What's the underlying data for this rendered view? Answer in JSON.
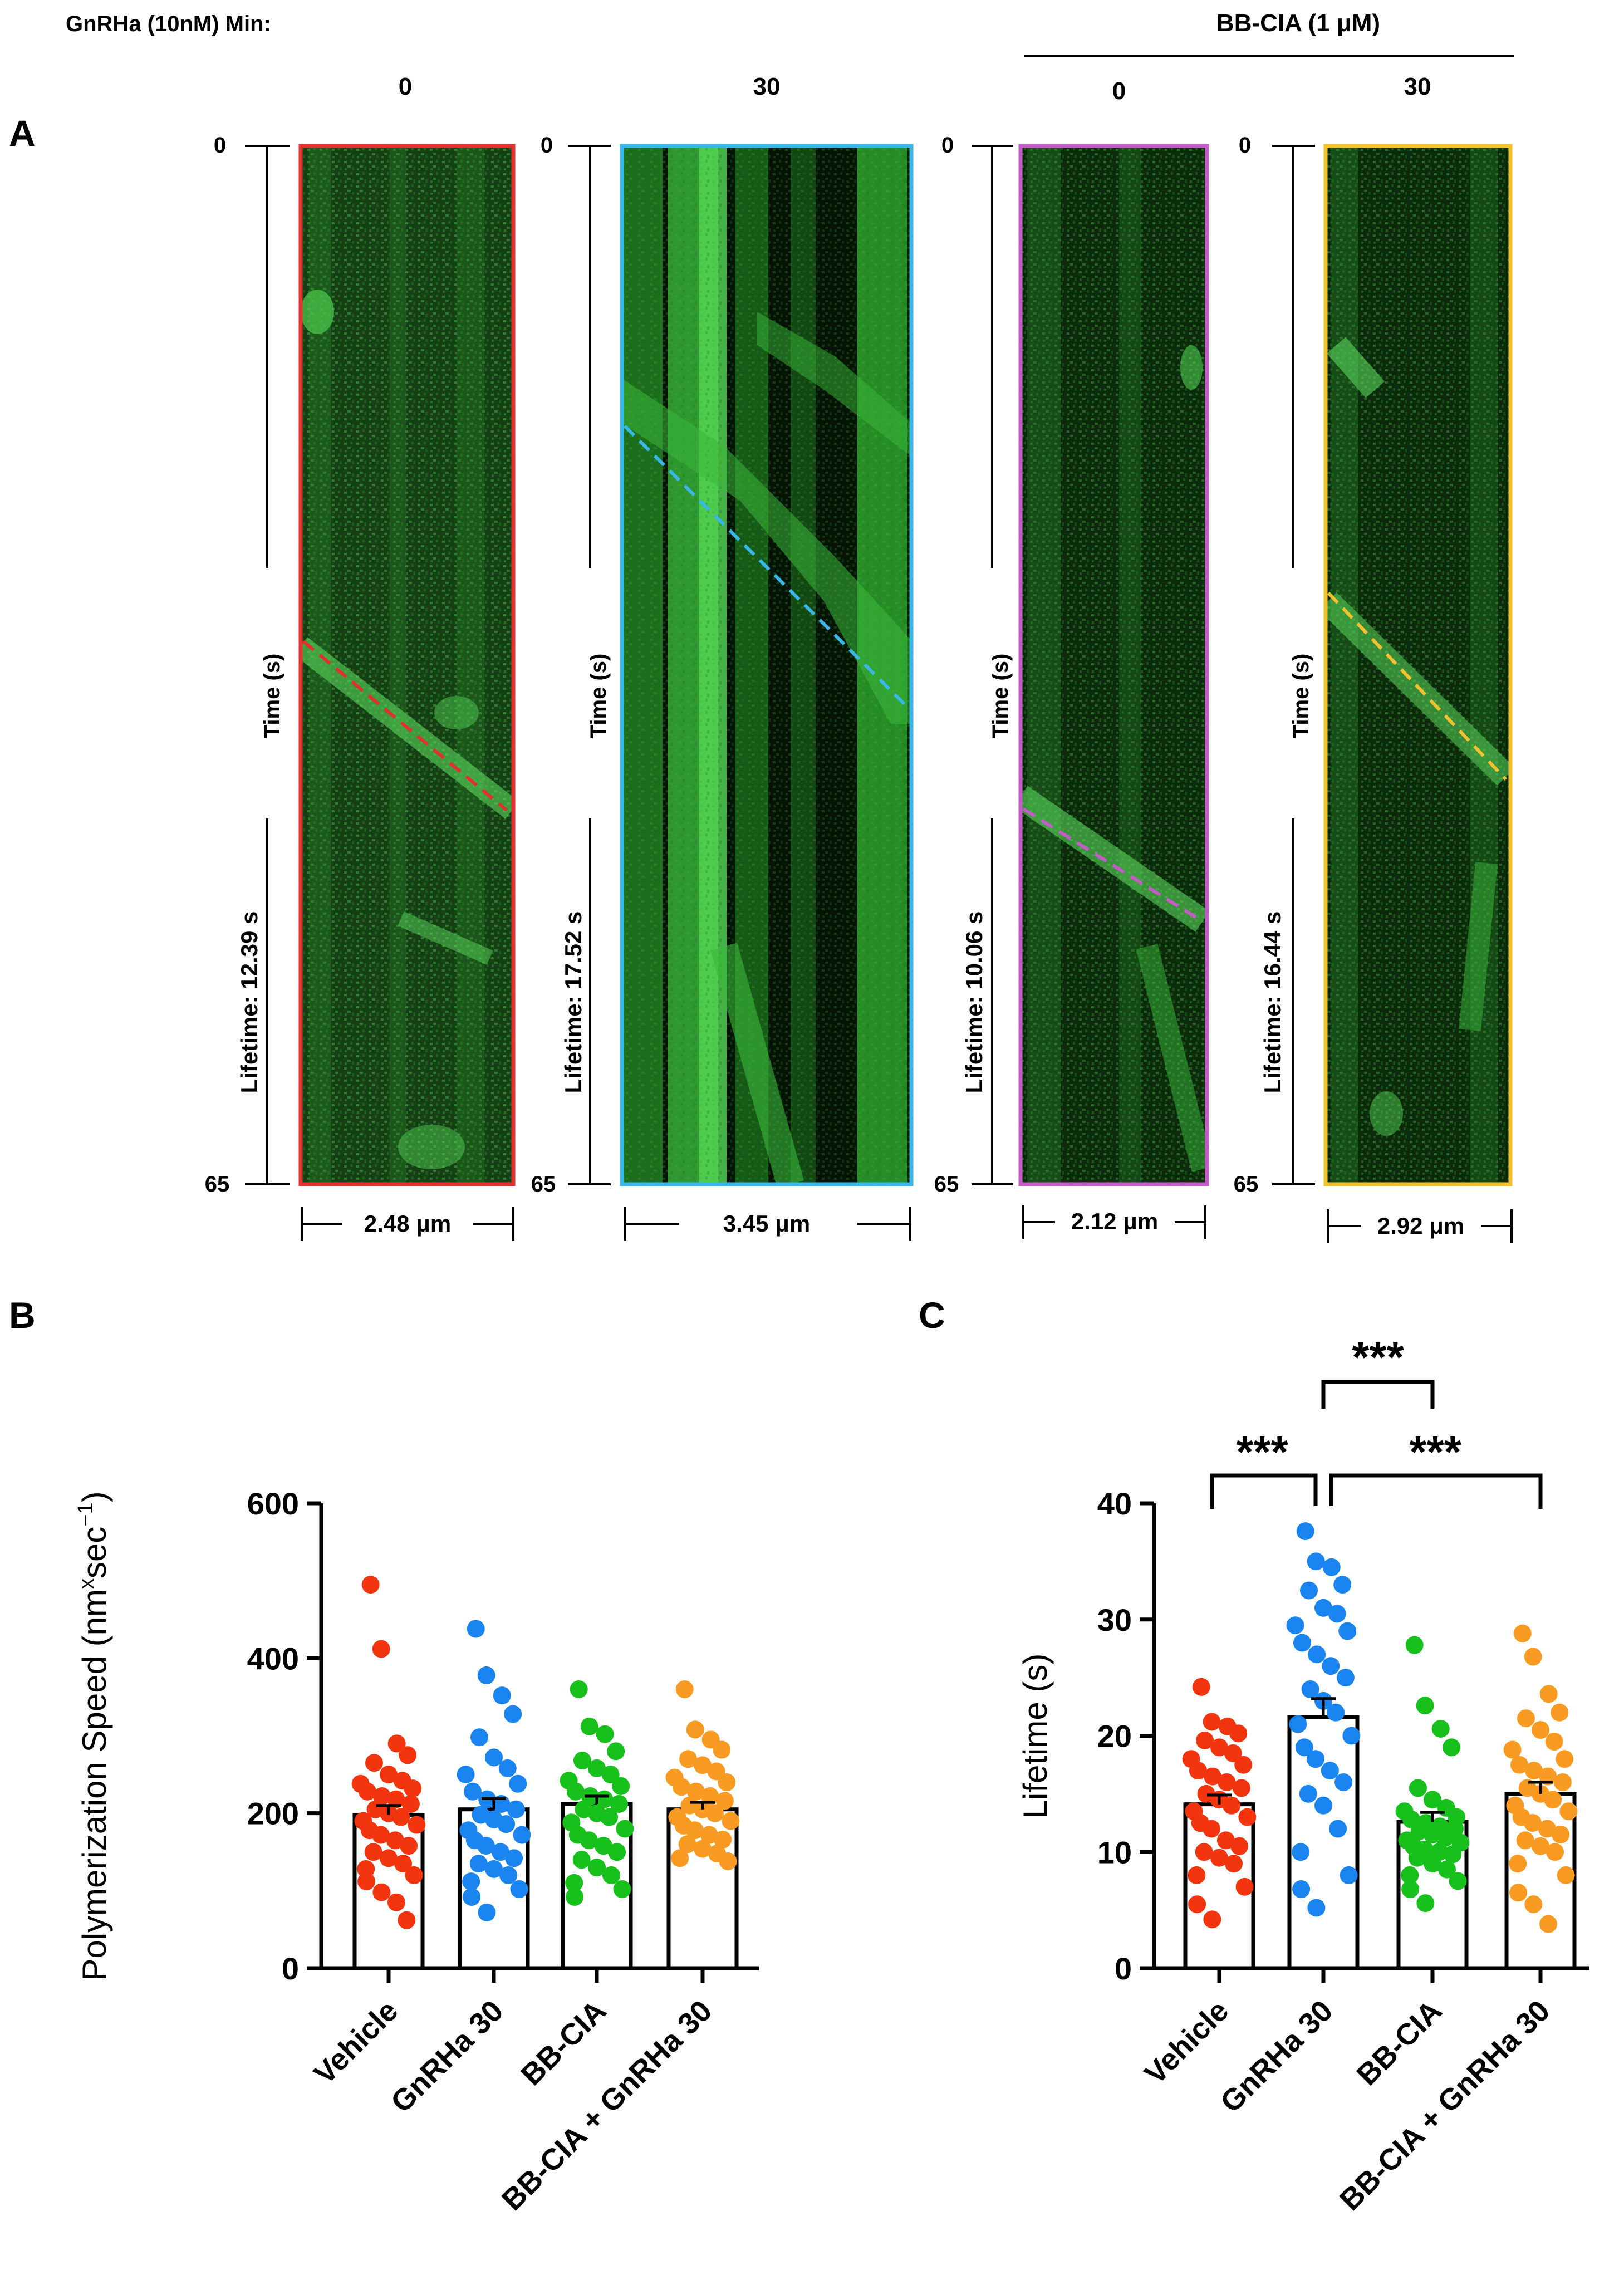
{
  "header": {
    "gnrha_label": "GnRHa (10nM) Min:",
    "bbcia_label": "BB-CIA (1 μM)"
  },
  "panels": {
    "a": "A",
    "b": "B",
    "c": "C"
  },
  "kymographs": [
    {
      "minute": "0",
      "time_start": "0",
      "time_end": "65",
      "time_label": "Time (s)",
      "lifetime": "Lifetime: 12.39 s",
      "width_label": "2.48 μm",
      "border": "#e03030",
      "line": "#e03030"
    },
    {
      "minute": "30",
      "time_start": "0",
      "time_end": "65",
      "time_label": "Time (s)",
      "lifetime": "Lifetime: 17.52 s",
      "width_label": "3.45 μm",
      "border": "#38b7e8",
      "line": "#38b7e8"
    },
    {
      "minute": "0",
      "time_start": "0",
      "time_end": "65",
      "time_label": "Time (s)",
      "lifetime": "Lifetime: 10.06 s",
      "width_label": "2.12 μm",
      "border": "#c45cc8",
      "line": "#c45cc8"
    },
    {
      "minute": "30",
      "time_start": "0",
      "time_end": "65",
      "time_label": "Time (s)",
      "lifetime": "Lifetime: 16.44 s",
      "width_label": "2.92 μm",
      "border": "#f2c12e",
      "line": "#f2c12e"
    }
  ],
  "chart_data": [
    {
      "id": "B",
      "type": "bar",
      "categories": [
        "Vehicle",
        "GnRHa 30",
        "BB-CIA",
        "BB-CIA + GnRHa 30"
      ],
      "values": [
        198,
        205,
        212,
        205
      ],
      "sem": [
        12,
        14,
        10,
        9
      ],
      "colors": [
        "#f2350f",
        "#1a84f0",
        "#18c01c",
        "#f99a22"
      ],
      "points": [
        [
          495,
          412,
          290,
          275,
          265,
          250,
          242,
          238,
          232,
          228,
          222,
          218,
          212,
          205,
          200,
          195,
          190,
          185,
          178,
          172,
          165,
          158,
          150,
          142,
          135,
          128,
          120,
          112,
          98,
          85,
          62
        ],
        [
          438,
          378,
          352,
          328,
          298,
          272,
          258,
          250,
          238,
          228,
          218,
          212,
          205,
          198,
          192,
          186,
          178,
          172,
          165,
          158,
          150,
          142,
          135,
          128,
          120,
          112,
          102,
          92,
          72
        ],
        [
          360,
          312,
          302,
          280,
          268,
          258,
          250,
          242,
          235,
          228,
          222,
          218,
          212,
          205,
          200,
          195,
          188,
          180,
          172,
          165,
          158,
          150,
          140,
          130,
          120,
          110,
          102,
          92
        ],
        [
          360,
          308,
          295,
          282,
          270,
          262,
          254,
          246,
          240,
          234,
          228,
          222,
          216,
          210,
          205,
          200,
          195,
          190,
          184,
          178,
          172,
          166,
          160,
          154,
          148,
          142,
          138
        ]
      ],
      "ylabel": "Polymerization Speed (nm×sec⁻¹)",
      "ylabel_main": "Polymerization Speed (nm",
      "ylabel_x": "x",
      "ylabel_sec": "sec",
      "ylabel_sup": "−1",
      "ylabel_close": ")",
      "ylim": [
        0,
        600
      ],
      "yticks": [
        "0",
        "200",
        "400",
        "600"
      ]
    },
    {
      "id": "C",
      "type": "bar",
      "categories": [
        "Vehicle",
        "GnRHa 30",
        "BB-CIA",
        "BB-CIA + GnRHa 30"
      ],
      "values": [
        14.1,
        21.6,
        12.6,
        15.0
      ],
      "sem": [
        0.8,
        1.6,
        0.8,
        1.0
      ],
      "colors": [
        "#f2350f",
        "#1a84f0",
        "#18c01c",
        "#f99a22"
      ],
      "points": [
        [
          24.2,
          21.2,
          20.8,
          20.2,
          19.6,
          19.0,
          18.5,
          18.0,
          17.5,
          17.0,
          16.5,
          16.0,
          15.5,
          15.0,
          14.5,
          14.0,
          13.5,
          13.0,
          12.5,
          12.0,
          11.0,
          10.5,
          10.0,
          9.5,
          9.0,
          8.0,
          7.0,
          5.5,
          4.2
        ],
        [
          37.6,
          35.0,
          34.5,
          33.0,
          32.5,
          31.0,
          30.5,
          29.5,
          29.0,
          28.0,
          27.0,
          26.0,
          25.0,
          24.0,
          23.0,
          22.0,
          21.0,
          20.0,
          19.0,
          18.0,
          17.0,
          16.0,
          15.0,
          14.0,
          12.0,
          10.0,
          8.0,
          6.8,
          5.2
        ],
        [
          27.8,
          22.6,
          20.6,
          19.0,
          15.5,
          14.5,
          13.8,
          13.5,
          13.0,
          12.8,
          12.5,
          12.2,
          12.0,
          11.8,
          11.5,
          11.2,
          11.0,
          10.8,
          10.5,
          10.2,
          10.0,
          9.8,
          9.5,
          9.0,
          8.5,
          8.0,
          7.5,
          6.8,
          5.6
        ],
        [
          28.8,
          26.8,
          23.6,
          22.0,
          21.5,
          20.5,
          19.5,
          18.8,
          18.0,
          17.5,
          17.0,
          16.5,
          16.0,
          15.5,
          15.0,
          14.5,
          14.0,
          13.5,
          13.0,
          12.5,
          12.0,
          11.5,
          11.0,
          10.5,
          10.0,
          9.0,
          8.0,
          6.5,
          5.5,
          3.8
        ]
      ],
      "ylabel": "Lifetime (s)",
      "ylim": [
        0,
        40
      ],
      "yticks": [
        "0",
        "10",
        "20",
        "30",
        "40"
      ],
      "significance": [
        "***",
        "***",
        "***"
      ]
    }
  ]
}
